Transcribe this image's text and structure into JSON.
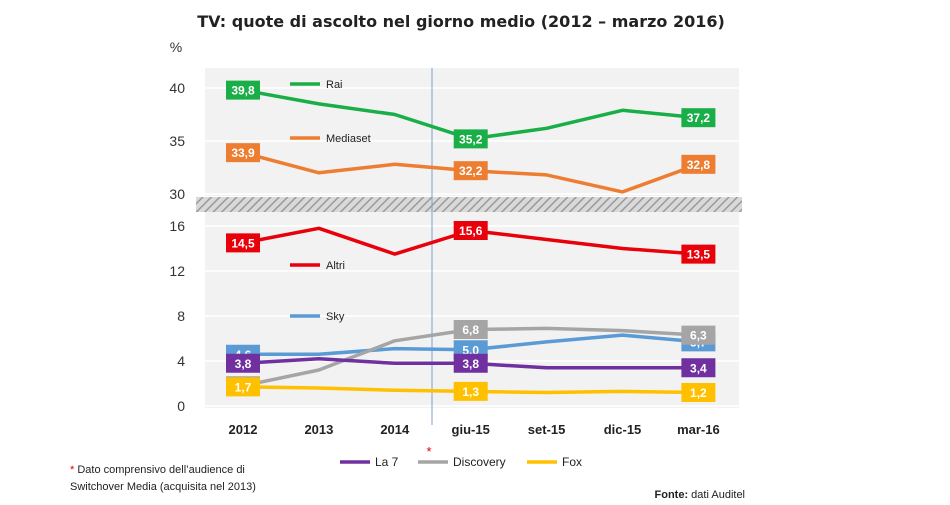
{
  "chart_data": {
    "type": "line",
    "title": "TV: quote di ascolto nel giorno medio (2012 – marzo 2016)",
    "ylabel": "%",
    "categories": [
      "2012",
      "2013",
      "2014",
      "giu-15",
      "set-15",
      "dic-15",
      "mar-16"
    ],
    "upper_panel": {
      "ylim": [
        30,
        41.5
      ],
      "yticks": [
        30,
        35,
        40
      ]
    },
    "lower_panel": {
      "ylim": [
        -0.5,
        17
      ],
      "yticks": [
        0,
        4,
        8,
        12,
        16
      ]
    },
    "series": [
      {
        "name": "Rai",
        "panel": "upper",
        "color": "#1aae48",
        "values": [
          39.8,
          38.5,
          37.5,
          35.2,
          36.2,
          37.9,
          37.2
        ],
        "labels": {
          "0": "39,8",
          "3": "35,2",
          "6": "37,2"
        }
      },
      {
        "name": "Mediaset",
        "panel": "upper",
        "color": "#ed7d31",
        "values": [
          33.9,
          32.0,
          32.8,
          32.2,
          31.8,
          30.2,
          32.8
        ],
        "labels": {
          "0": "33,9",
          "3": "32,2",
          "6": "32,8"
        }
      },
      {
        "name": "Altri",
        "panel": "lower",
        "color": "#e8000b",
        "values": [
          14.5,
          15.8,
          13.5,
          15.6,
          14.8,
          14.0,
          13.5
        ],
        "labels": {
          "0": "14,5",
          "3": "15,6",
          "6": "13,5"
        }
      },
      {
        "name": "Sky",
        "panel": "lower",
        "color": "#5b9bd5",
        "values": [
          4.6,
          4.6,
          5.1,
          5.0,
          5.7,
          6.3,
          5.7
        ],
        "labels": {
          "0": "4,6",
          "3": "5,0",
          "6": "5,7"
        }
      },
      {
        "name": "Discovery",
        "panel": "lower",
        "color": "#a5a5a5",
        "values": [
          1.8,
          3.2,
          5.8,
          6.8,
          6.9,
          6.7,
          6.3
        ],
        "labels": {
          "0": "1,8",
          "3": "6,8",
          "6": "6,3"
        }
      },
      {
        "name": "La 7",
        "panel": "lower",
        "color": "#7030a0",
        "values": [
          3.8,
          4.2,
          3.8,
          3.8,
          3.4,
          3.4,
          3.4
        ],
        "labels": {
          "0": "3,8",
          "3": "3,8",
          "6": "3,4"
        }
      },
      {
        "name": "Fox",
        "panel": "lower",
        "color": "#ffc000",
        "values": [
          1.7,
          1.6,
          1.4,
          1.3,
          1.2,
          1.3,
          1.2
        ],
        "labels": {
          "0": "1,7",
          "3": "1,3",
          "6": "1,2"
        }
      }
    ],
    "legend_bottom": [
      "La 7",
      "Discovery",
      "Fox"
    ],
    "legend_bottom_marker": "*",
    "vertical_marker_after": "2014"
  },
  "footnote": {
    "star": "*",
    "text": " Dato comprensivo dell’audience di",
    "text2": "Switchover Media (acquisita nel 2013)"
  },
  "source": {
    "label": "Fonte:",
    "text": " dati Auditel"
  }
}
